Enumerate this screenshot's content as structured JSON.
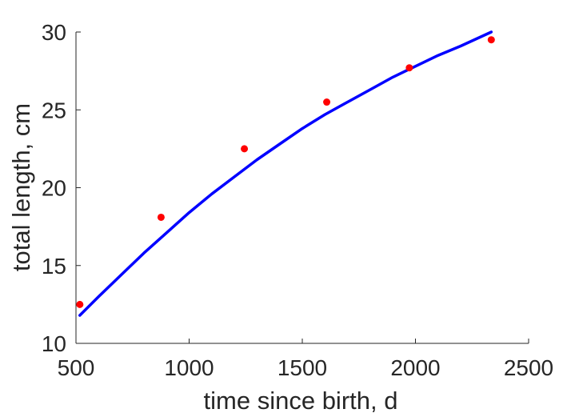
{
  "chart_data": {
    "type": "scatter",
    "xlabel": "time since birth, d",
    "ylabel": "total length, cm",
    "xlim": [
      500,
      2500
    ],
    "ylim": [
      10,
      30
    ],
    "xticks": [
      500,
      1000,
      1500,
      2000,
      2500
    ],
    "yticks": [
      10,
      15,
      20,
      25,
      30
    ],
    "grid": false,
    "box": false,
    "series": [
      {
        "kind": "points",
        "marker": "filled-circle",
        "color": "#ff0000",
        "x": [
          517,
          876,
          1244,
          1608,
          1973,
          2335
        ],
        "y": [
          12.5,
          18.1,
          22.5,
          25.5,
          27.7,
          29.5
        ]
      },
      {
        "kind": "line",
        "color": "#0000ff",
        "x": [
          517,
          600,
          700,
          800,
          900,
          1000,
          1100,
          1200,
          1300,
          1400,
          1500,
          1600,
          1700,
          1800,
          1900,
          2000,
          2100,
          2200,
          2335
        ],
        "y": [
          11.8,
          13.0,
          14.4,
          15.8,
          17.1,
          18.4,
          19.6,
          20.7,
          21.8,
          22.8,
          23.8,
          24.7,
          25.5,
          26.3,
          27.1,
          27.8,
          28.5,
          29.1,
          30.0
        ]
      }
    ]
  }
}
